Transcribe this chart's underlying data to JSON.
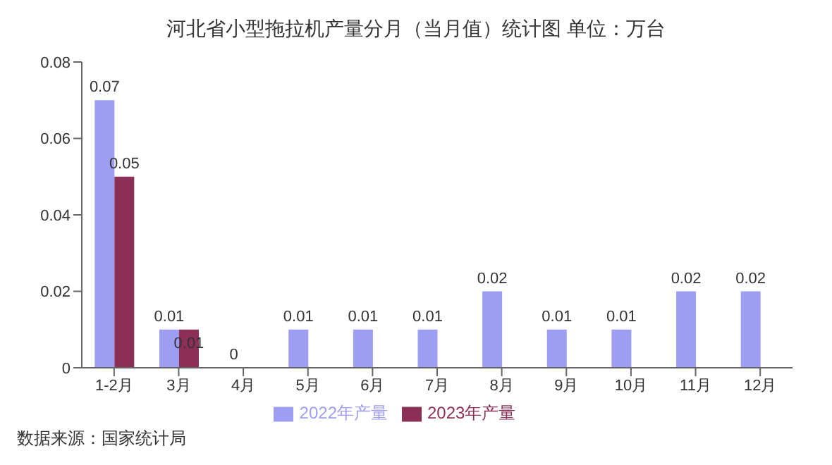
{
  "chart_data": {
    "type": "bar",
    "title": "河北省小型拖拉机产量分月（当月值）统计图 单位：万台",
    "categories": [
      "1-2月",
      "3月",
      "4月",
      "5月",
      "6月",
      "7月",
      "8月",
      "9月",
      "10月",
      "11月",
      "12月"
    ],
    "series": [
      {
        "name": "2022年产量",
        "color": "#9d9df2",
        "values": [
          0.07,
          0.01,
          0,
          0.01,
          0.01,
          0.01,
          0.02,
          0.01,
          0.01,
          0.02,
          0.02
        ]
      },
      {
        "name": "2023年产量",
        "color": "#8c2f57",
        "values": [
          0.05,
          0.01,
          null,
          null,
          null,
          null,
          null,
          null,
          null,
          null,
          null
        ]
      }
    ],
    "ylim": [
      0,
      0.08
    ],
    "yticks": [
      0,
      0.02,
      0.04,
      0.06,
      0.08
    ],
    "grid": false,
    "legend": "bottom",
    "data_labels": true,
    "annotations": [
      "数据来源：国家统计局"
    ]
  }
}
